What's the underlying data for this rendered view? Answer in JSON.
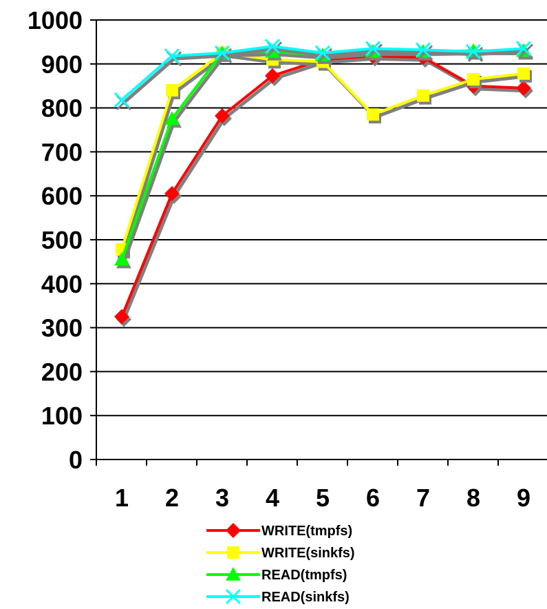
{
  "chart_data": {
    "type": "line",
    "title": "",
    "xlabel": "",
    "ylabel": "",
    "categories": [
      "1",
      "2",
      "3",
      "4",
      "5",
      "6",
      "7",
      "8",
      "9"
    ],
    "ylim": [
      0,
      1000
    ],
    "yticks": [
      "0",
      "100",
      "200",
      "300",
      "400",
      "500",
      "600",
      "700",
      "800",
      "900",
      "1000"
    ],
    "grid": "horizontal",
    "legend_position": "bottom",
    "series": [
      {
        "name": "WRITE(tmpfs)",
        "color": "#ff0000",
        "marker": "diamond",
        "values": [
          325,
          605,
          782,
          873,
          910,
          918,
          915,
          850,
          845
        ]
      },
      {
        "name": "WRITE(sinkfs)",
        "color": "#ffff00",
        "marker": "square",
        "values": [
          478,
          840,
          925,
          910,
          905,
          785,
          828,
          865,
          878
        ]
      },
      {
        "name": "READ(tmpfs)",
        "color": "#00ff00",
        "marker": "triangle",
        "values": [
          455,
          775,
          925,
          928,
          920,
          928,
          928,
          930,
          930
        ]
      },
      {
        "name": "READ(sinkfs)",
        "color": "#00ffff",
        "marker": "cross",
        "values": [
          818,
          918,
          925,
          940,
          925,
          935,
          932,
          928,
          935
        ]
      }
    ]
  }
}
